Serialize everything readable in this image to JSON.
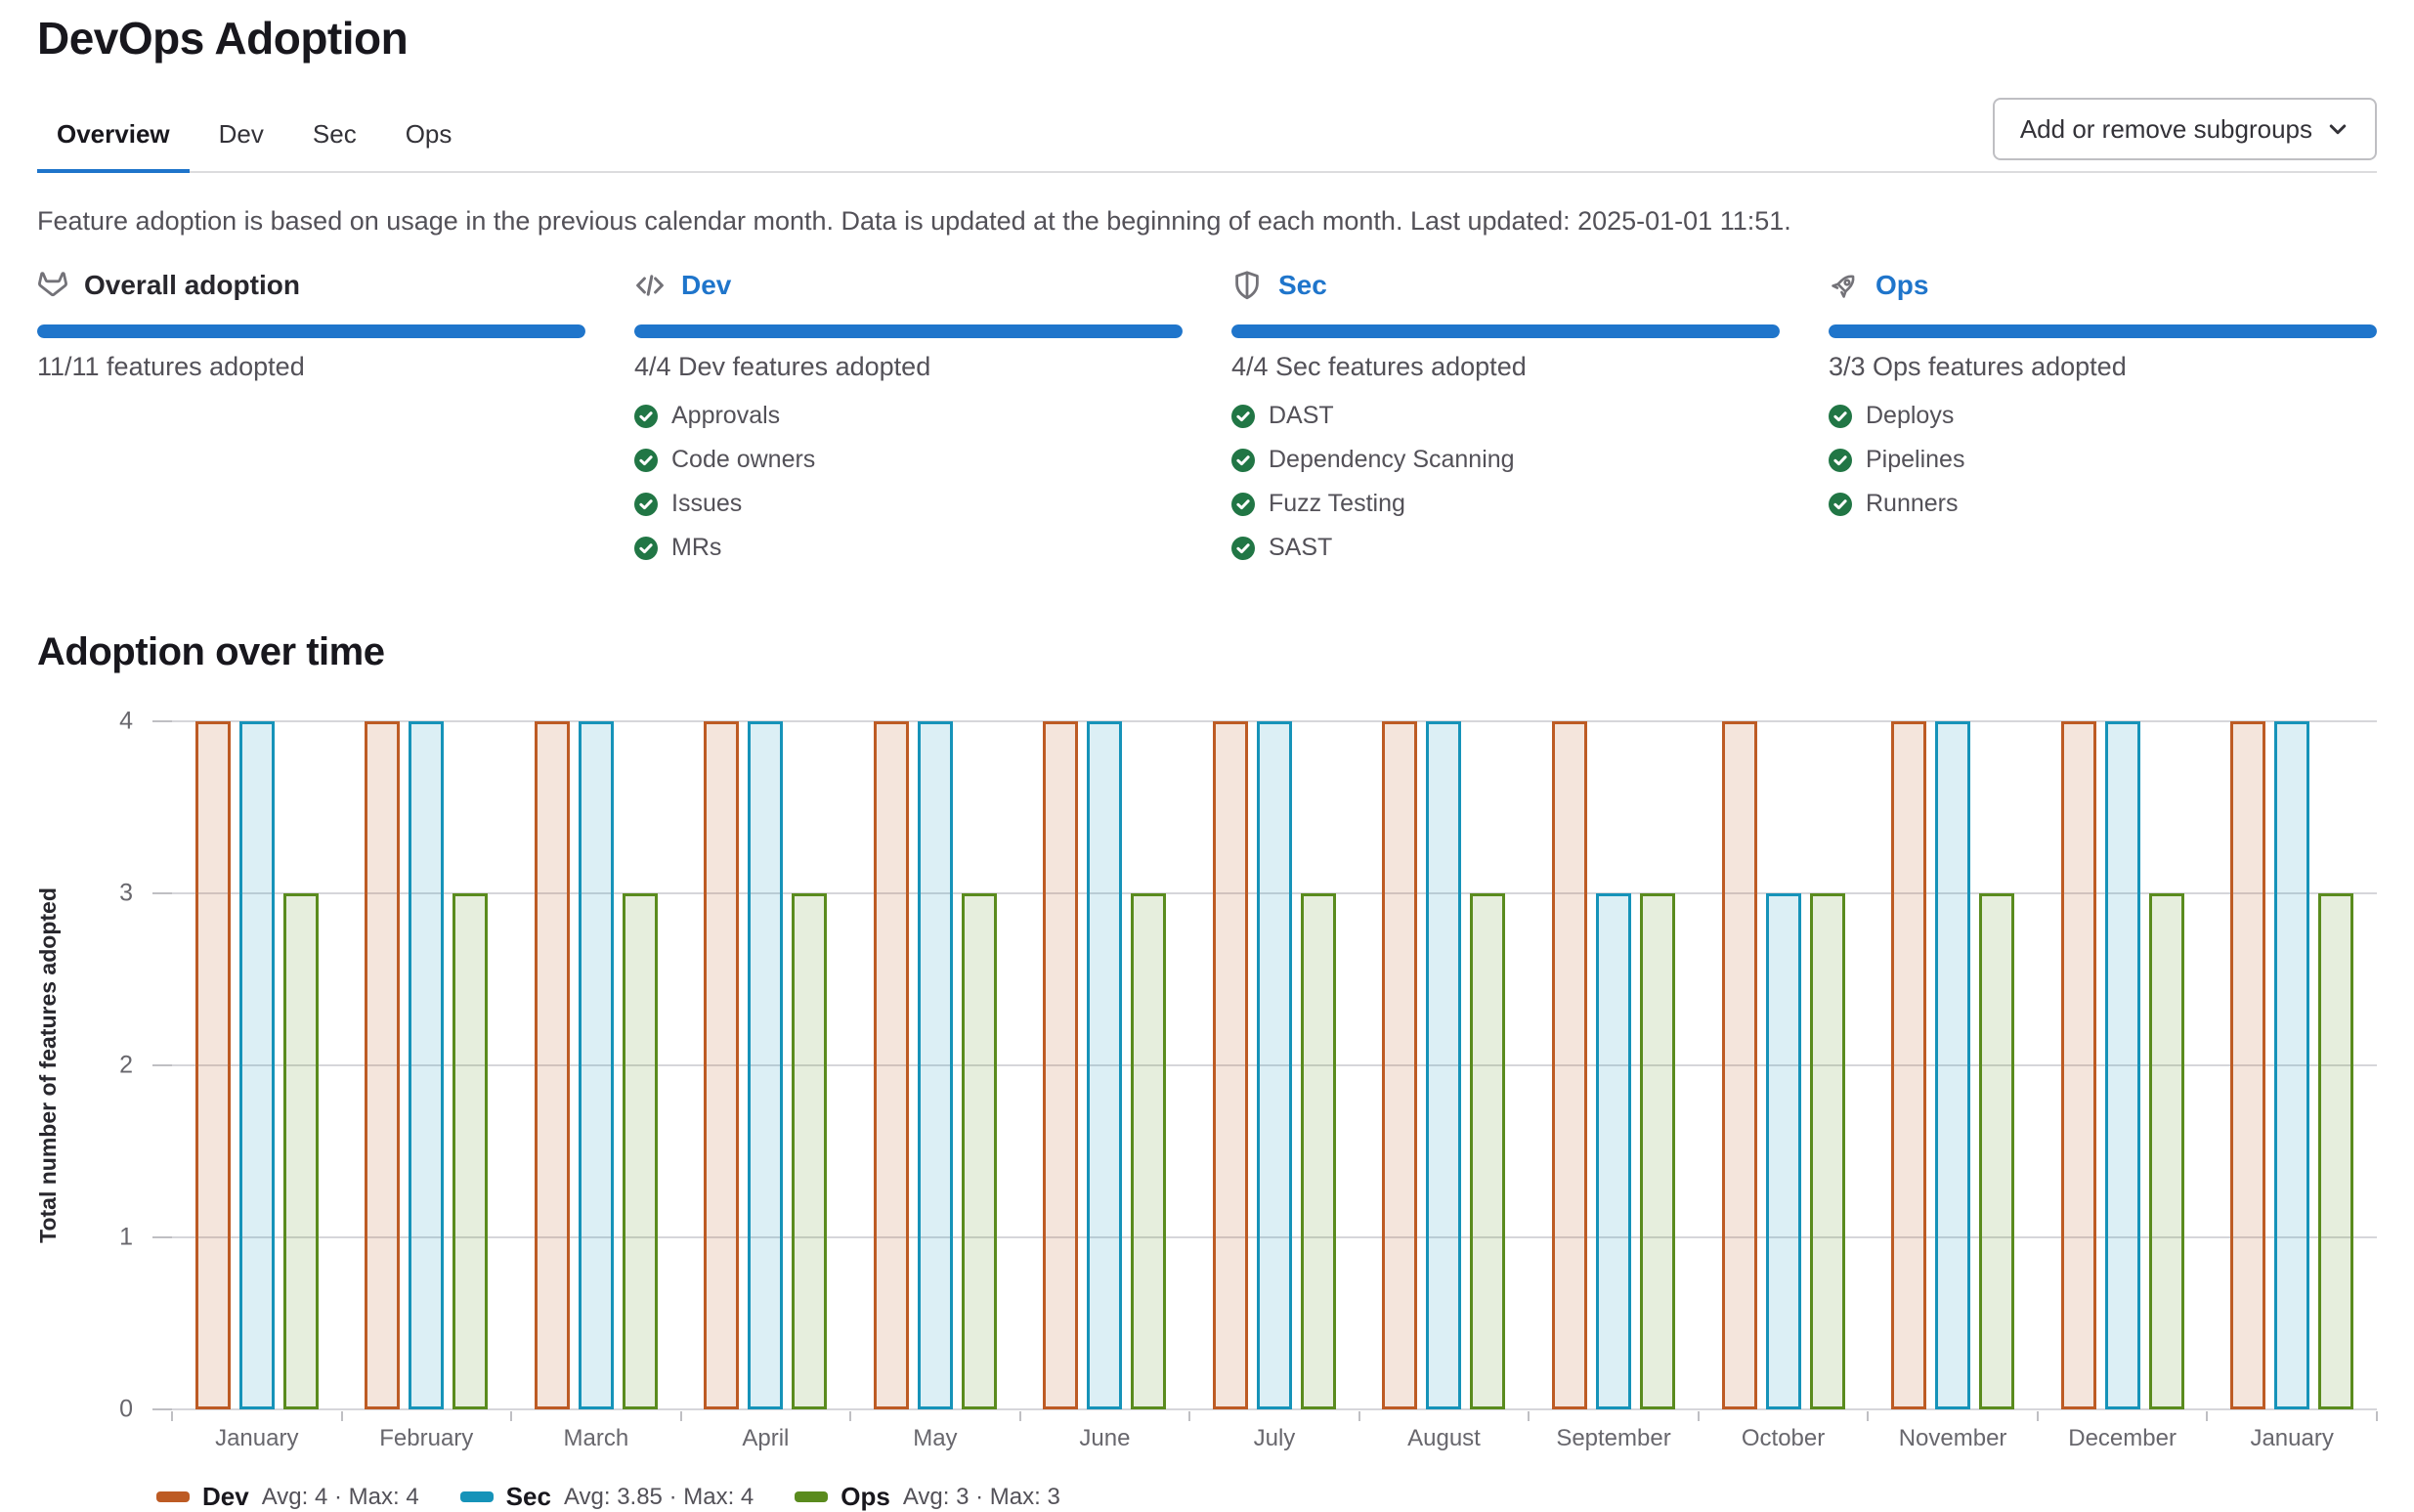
{
  "page": {
    "title": "DevOps Adoption"
  },
  "tabs": [
    {
      "label": "Overview",
      "active": true
    },
    {
      "label": "Dev",
      "active": false
    },
    {
      "label": "Sec",
      "active": false
    },
    {
      "label": "Ops",
      "active": false
    }
  ],
  "toolbar": {
    "subgroups_button_label": "Add or remove subgroups"
  },
  "info_text": "Feature adoption is based on usage in the previous calendar month. Data is updated at the beginning of each month. Last updated: 2025-01-01 11:51.",
  "cards": [
    {
      "icon": "tanuki-icon",
      "title": "Overall adoption",
      "is_link": false,
      "progress_percent": 100,
      "subtitle": "11/11 features adopted",
      "features": []
    },
    {
      "icon": "code-icon",
      "title": "Dev",
      "is_link": true,
      "progress_percent": 100,
      "subtitle": "4/4 Dev features adopted",
      "features": [
        "Approvals",
        "Code owners",
        "Issues",
        "MRs"
      ]
    },
    {
      "icon": "shield-icon",
      "title": "Sec",
      "is_link": true,
      "progress_percent": 100,
      "subtitle": "4/4 Sec features adopted",
      "features": [
        "DAST",
        "Dependency Scanning",
        "Fuzz Testing",
        "SAST"
      ]
    },
    {
      "icon": "rocket-icon",
      "title": "Ops",
      "is_link": true,
      "progress_percent": 100,
      "subtitle": "3/3 Ops features adopted",
      "features": [
        "Deploys",
        "Pipelines",
        "Runners"
      ]
    }
  ],
  "chart_section": {
    "title": "Adoption over time"
  },
  "chart_data": {
    "type": "bar",
    "title": "Adoption over time",
    "categories": [
      "January",
      "February",
      "March",
      "April",
      "May",
      "June",
      "July",
      "August",
      "September",
      "October",
      "November",
      "December",
      "January"
    ],
    "series": [
      {
        "name": "Dev",
        "color": "#bd5b24",
        "fill": "rgba(189,91,36,0.16)",
        "values": [
          4,
          4,
          4,
          4,
          4,
          4,
          4,
          4,
          4,
          4,
          4,
          4,
          4
        ],
        "legend_stats": "Avg: 4 · Max: 4"
      },
      {
        "name": "Sec",
        "color": "#1693b9",
        "fill": "rgba(22,147,185,0.15)",
        "values": [
          4,
          4,
          4,
          4,
          4,
          4,
          4,
          4,
          3,
          3,
          4,
          4,
          4
        ],
        "legend_stats": "Avg: 3.85 · Max: 4"
      },
      {
        "name": "Ops",
        "color": "#5a8b1e",
        "fill": "rgba(90,139,30,0.15)",
        "values": [
          3,
          3,
          3,
          3,
          3,
          3,
          3,
          3,
          3,
          3,
          3,
          3,
          3
        ],
        "legend_stats": "Avg: 3 · Max: 3"
      }
    ],
    "xlabel": "",
    "ylabel": "Total number of features adopted",
    "ylim": [
      0,
      4
    ],
    "yticks": [
      0,
      1,
      2,
      3,
      4
    ],
    "grid": true,
    "legend_position": "bottom"
  },
  "colors": {
    "accent": "#1f75cb",
    "progress": "#1f75cb",
    "success": "#217645"
  }
}
